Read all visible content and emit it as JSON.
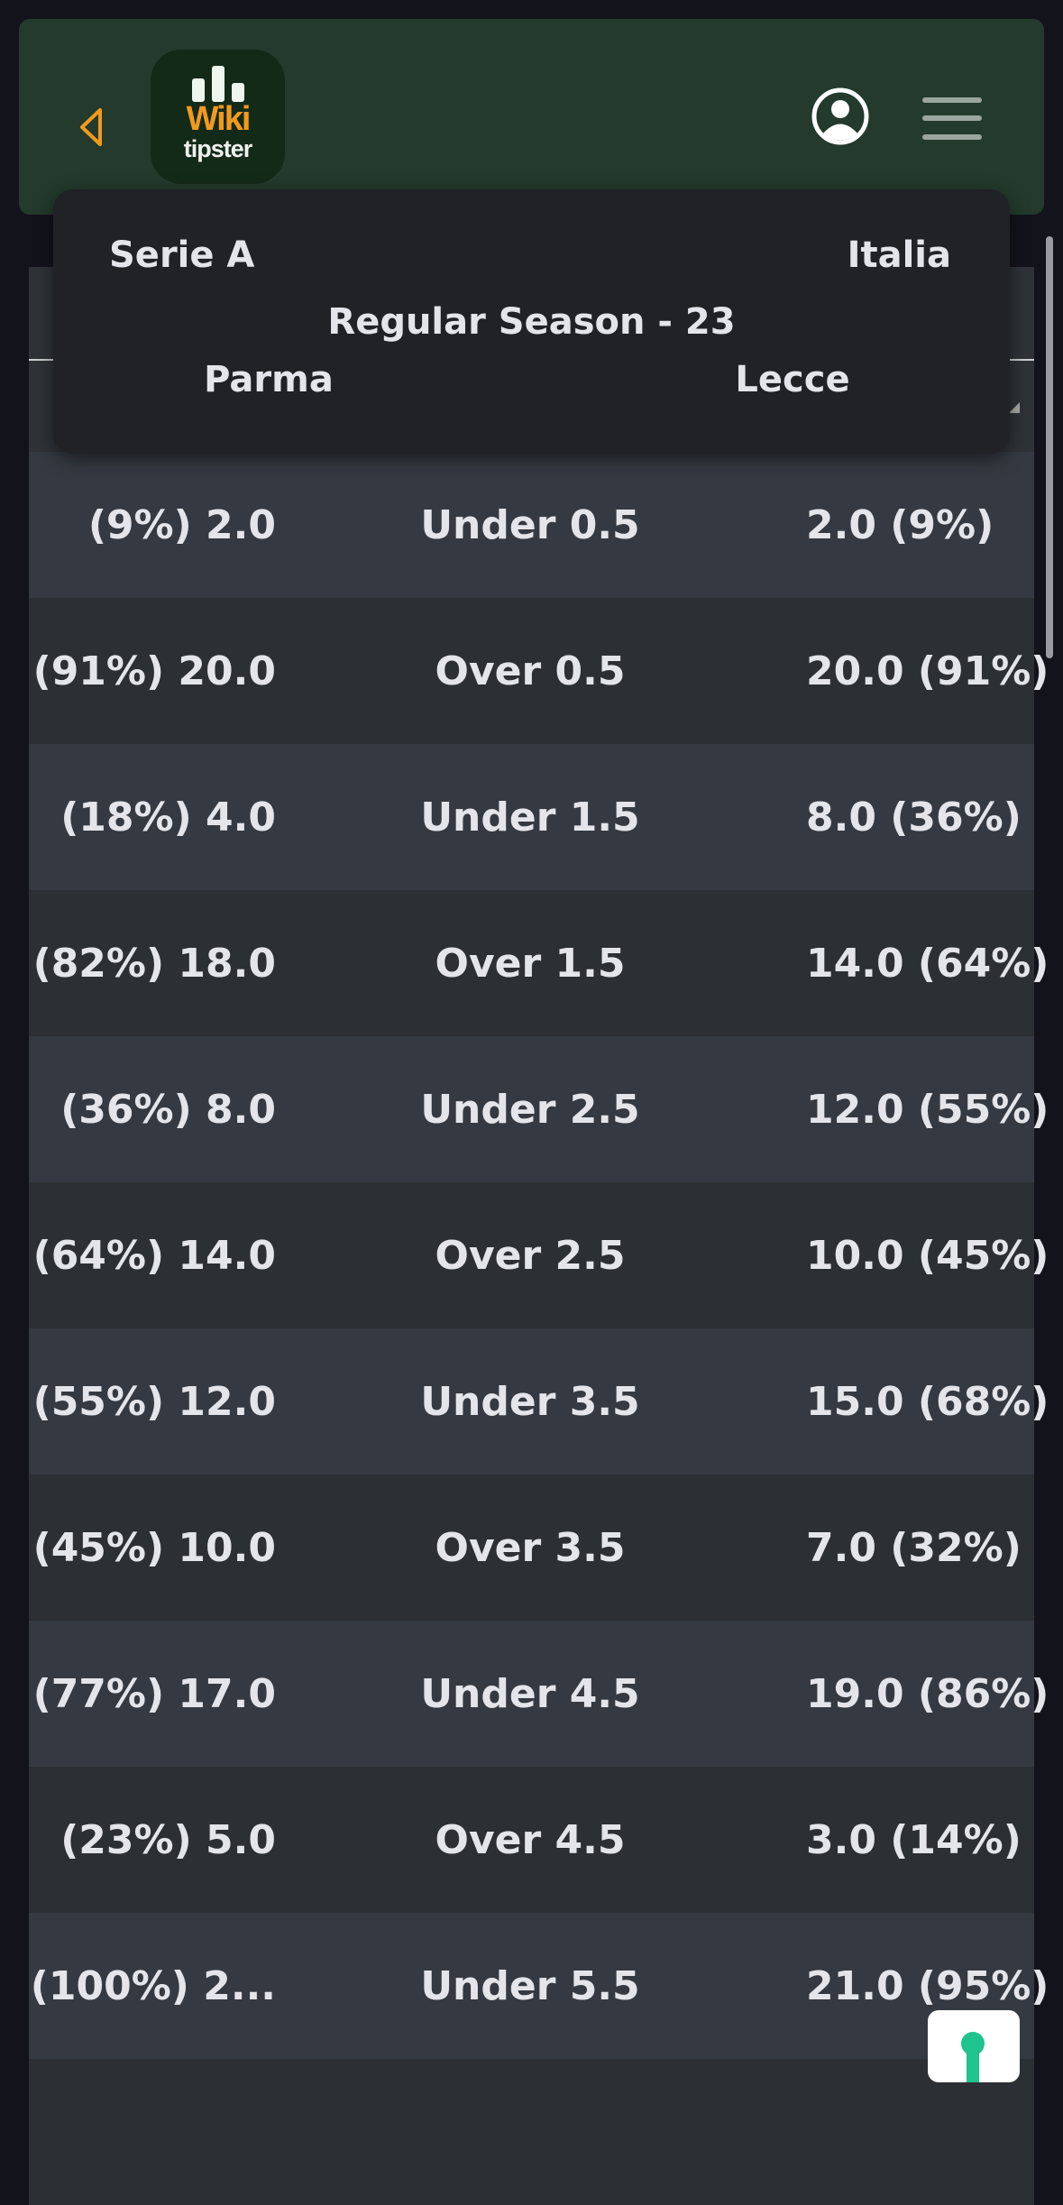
{
  "header": {
    "back_icon": "back-triangle-icon",
    "logo": {
      "line1": "Wiki",
      "line2": "tipster"
    },
    "user_icon": "user-circle-icon",
    "menu_icon": "hamburger-menu-icon",
    "accent": "#f29a1d",
    "background": "#233a2c"
  },
  "match": {
    "league": "Serie A",
    "country": "Italia",
    "round": "Regular Season - 23",
    "home": "Parma",
    "away": "Lecce"
  },
  "rows": [
    {
      "home": "(9%) 2.0",
      "market": "Under 0.5",
      "away": "2.0 (9%)"
    },
    {
      "home": "(91%) 20.0",
      "market": "Over 0.5",
      "away": "20.0 (91%)"
    },
    {
      "home": "(18%) 4.0",
      "market": "Under 1.5",
      "away": "8.0 (36%)"
    },
    {
      "home": "(82%) 18.0",
      "market": "Over 1.5",
      "away": "14.0 (64%)"
    },
    {
      "home": "(36%) 8.0",
      "market": "Under 2.5",
      "away": "12.0 (55%)"
    },
    {
      "home": "(64%) 14.0",
      "market": "Over 2.5",
      "away": "10.0 (45%)"
    },
    {
      "home": "(55%) 12.0",
      "market": "Under 3.5",
      "away": "15.0 (68%)"
    },
    {
      "home": "(45%) 10.0",
      "market": "Over 3.5",
      "away": "7.0 (32%)"
    },
    {
      "home": "(77%) 17.0",
      "market": "Under 4.5",
      "away": "19.0 (86%)"
    },
    {
      "home": "(23%) 5.0",
      "market": "Over 4.5",
      "away": "3.0 (14%)"
    },
    {
      "home": "(100%) 2...",
      "market": "Under 5.5",
      "away": "21.0 (95%)"
    },
    {
      "home": "",
      "market": "",
      "away": ""
    }
  ],
  "fab_icon": "keyhole-icon"
}
